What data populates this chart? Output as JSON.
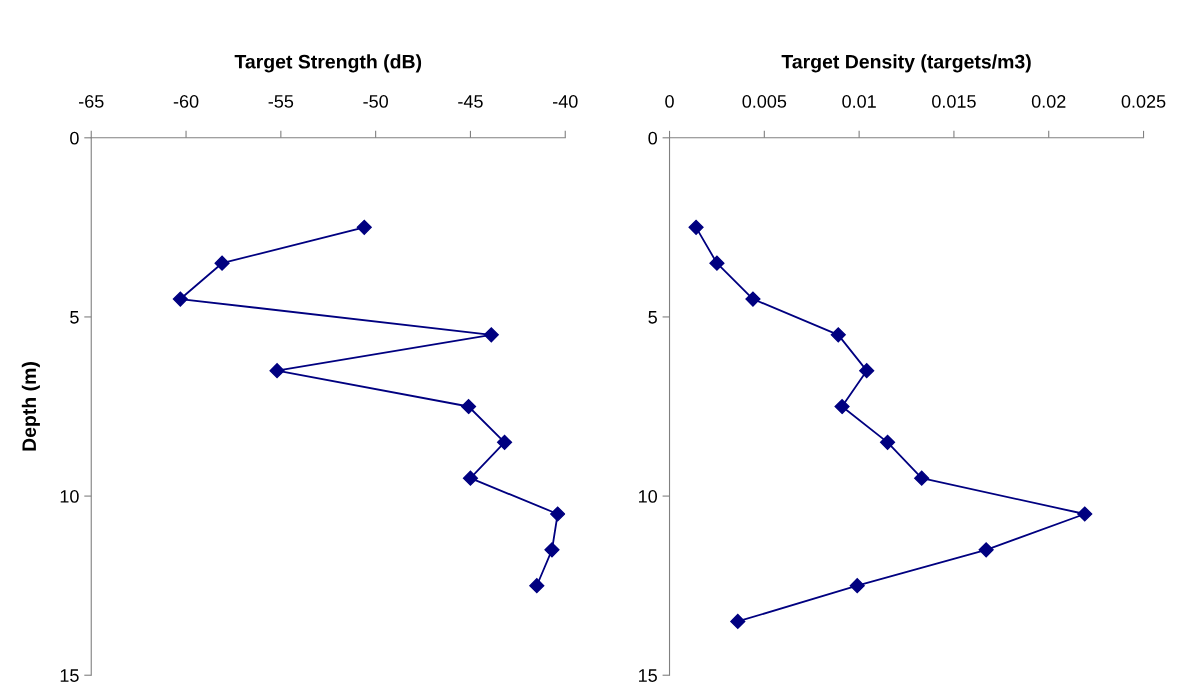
{
  "chart_data": [
    {
      "type": "line",
      "title": "Target Strength (dB)",
      "ylabel": "Depth (m)",
      "marker": "diamond",
      "line_style": "solid",
      "grid": false,
      "legend": false,
      "series": [
        {
          "color": "#000080",
          "x": [
            -50.6,
            -58.1,
            -60.3,
            -43.9,
            -55.2,
            -45.1,
            -43.2,
            -45.0,
            -40.4,
            -40.7,
            -41.5
          ],
          "values": [
            2.5,
            3.5,
            4.5,
            5.5,
            6.5,
            7.5,
            8.5,
            9.5,
            10.5,
            11.5,
            12.5
          ]
        }
      ],
      "xlim": [
        -65,
        -40
      ],
      "xticks": [
        -65,
        -60,
        -55,
        -50,
        -45,
        -40
      ],
      "ylim": [
        15,
        0
      ],
      "yticks": [
        0,
        5,
        10,
        15
      ]
    },
    {
      "type": "line",
      "title": "Target Density (targets/m3)",
      "marker": "diamond",
      "line_style": "solid",
      "grid": false,
      "legend": false,
      "series": [
        {
          "color": "#000080",
          "x": [
            0.0014,
            0.0025,
            0.0044,
            0.0089,
            0.0104,
            0.0091,
            0.0115,
            0.0133,
            0.0219,
            0.0167,
            0.0099,
            0.0036
          ],
          "values": [
            2.5,
            3.5,
            4.5,
            5.5,
            6.5,
            7.5,
            8.5,
            9.5,
            10.5,
            11.5,
            12.5,
            13.5
          ]
        }
      ],
      "xlim": [
        0,
        0.025
      ],
      "xticks": [
        0,
        0.005,
        0.01,
        0.015,
        0.02,
        0.025
      ],
      "ylim": [
        15,
        0
      ],
      "yticks": [
        0,
        5,
        10,
        15
      ]
    }
  ]
}
